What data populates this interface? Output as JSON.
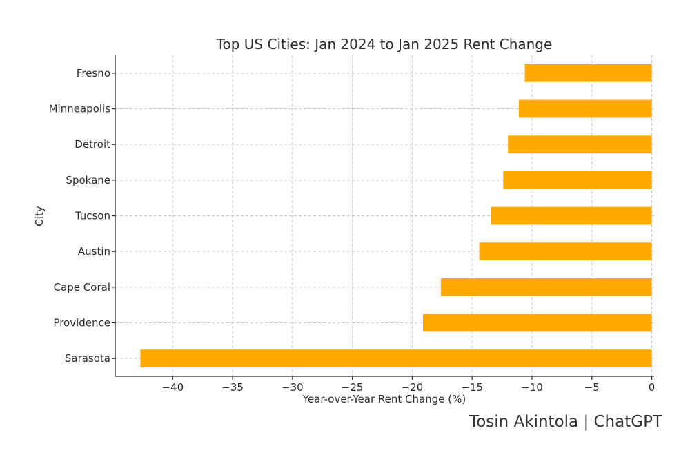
{
  "chart_data": {
    "type": "bar",
    "orientation": "horizontal",
    "title": "Top US Cities: Jan 2024 to Jan 2025 Rent Change",
    "xlabel": "Year-over-Year Rent Change (%)",
    "ylabel": "City",
    "categories": [
      "Fresno",
      "Minneapolis",
      "Detroit",
      "Spokane",
      "Tucson",
      "Austin",
      "Cape Coral",
      "Providence",
      "Sarasota"
    ],
    "values": [
      -10.6,
      -11.1,
      -12.0,
      -12.4,
      -13.4,
      -14.4,
      -17.6,
      -19.1,
      -42.7
    ],
    "xlim": [
      -44.8,
      0.2
    ],
    "xticks": [
      -40,
      -35,
      -30,
      -25,
      -20,
      -15,
      -10,
      -5,
      0
    ],
    "xtick_labels": [
      "−40",
      "−35",
      "−30",
      "−25",
      "−20",
      "−15",
      "−10",
      "−5",
      "0"
    ],
    "grid": true,
    "bar_color": "#FFAA00"
  },
  "credit": "Tosin Akintola | ChatGPT"
}
